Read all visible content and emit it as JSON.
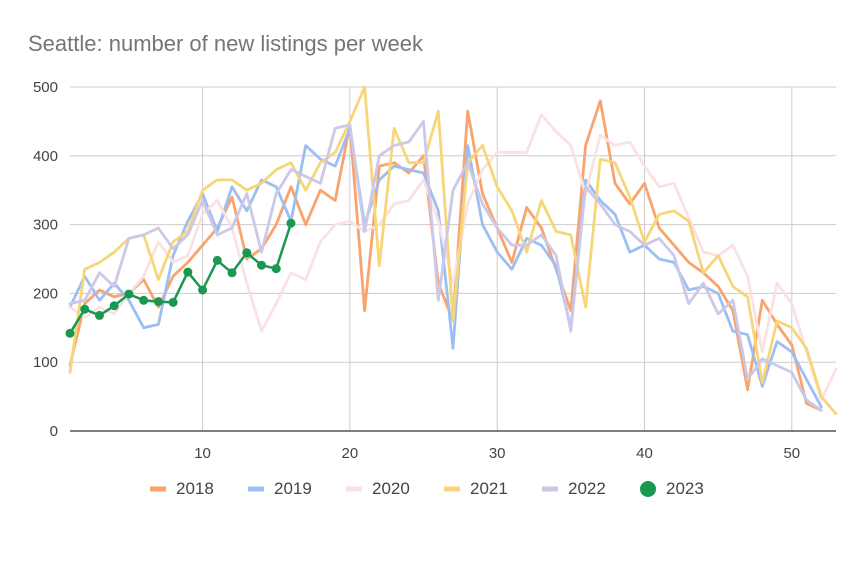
{
  "chart_data": {
    "type": "line",
    "title": "Seattle: number of new listings per week",
    "xlabel": "",
    "ylabel": "",
    "xlim": [
      1,
      53
    ],
    "ylim": [
      0,
      500
    ],
    "x_ticks": [
      10,
      20,
      30,
      40,
      50
    ],
    "y_ticks": [
      0,
      100,
      200,
      300,
      400,
      500
    ],
    "grid": true,
    "legend_position": "bottom",
    "x": [
      1,
      2,
      3,
      4,
      5,
      6,
      7,
      8,
      9,
      10,
      11,
      12,
      13,
      14,
      15,
      16,
      17,
      18,
      19,
      20,
      21,
      22,
      23,
      24,
      25,
      26,
      27,
      28,
      29,
      30,
      31,
      32,
      33,
      34,
      35,
      36,
      37,
      38,
      39,
      40,
      41,
      42,
      43,
      44,
      45,
      46,
      47,
      48,
      49,
      50,
      51,
      52,
      53
    ],
    "series": [
      {
        "name": "2018",
        "color": "#f9a46e",
        "values": [
          95,
          185,
          205,
          195,
          200,
          220,
          180,
          225,
          245,
          270,
          295,
          340,
          250,
          265,
          300,
          355,
          300,
          350,
          335,
          445,
          175,
          385,
          390,
          375,
          400,
          215,
          160,
          465,
          345,
          295,
          245,
          325,
          295,
          235,
          175,
          415,
          480,
          360,
          330,
          360,
          295,
          270,
          245,
          230,
          210,
          175,
          60,
          190,
          155,
          125,
          40,
          30,
          null
        ]
      },
      {
        "name": "2019",
        "color": "#9cbff2",
        "values": [
          180,
          225,
          190,
          215,
          190,
          150,
          155,
          255,
          305,
          345,
          290,
          355,
          320,
          365,
          355,
          305,
          415,
          395,
          385,
          440,
          300,
          365,
          385,
          380,
          375,
          320,
          120,
          415,
          300,
          260,
          235,
          280,
          270,
          240,
          150,
          365,
          335,
          315,
          260,
          270,
          250,
          245,
          205,
          210,
          200,
          145,
          140,
          65,
          130,
          115,
          75,
          35,
          null
        ]
      },
      {
        "name": "2020",
        "color": "#fbe2e2",
        "values": [
          180,
          165,
          180,
          170,
          200,
          225,
          275,
          245,
          255,
          315,
          335,
          295,
          215,
          145,
          185,
          230,
          220,
          275,
          300,
          305,
          290,
          300,
          330,
          335,
          365,
          305,
          215,
          330,
          380,
          405,
          405,
          405,
          460,
          435,
          415,
          345,
          430,
          415,
          420,
          385,
          355,
          360,
          310,
          260,
          255,
          270,
          225,
          115,
          215,
          185,
          115,
          45,
          90
        ]
      },
      {
        "name": "2021",
        "color": "#f7d67a",
        "values": [
          85,
          235,
          245,
          260,
          280,
          285,
          220,
          275,
          290,
          350,
          365,
          365,
          350,
          360,
          380,
          390,
          350,
          390,
          405,
          450,
          500,
          240,
          440,
          390,
          390,
          465,
          160,
          390,
          415,
          355,
          320,
          260,
          335,
          290,
          285,
          180,
          395,
          390,
          340,
          275,
          315,
          320,
          305,
          230,
          255,
          210,
          195,
          70,
          160,
          150,
          120,
          50,
          25
        ]
      },
      {
        "name": "2022",
        "color": "#cdc8e8",
        "values": [
          185,
          190,
          230,
          210,
          280,
          285,
          295,
          265,
          285,
          335,
          285,
          295,
          345,
          260,
          345,
          380,
          370,
          360,
          440,
          445,
          290,
          400,
          415,
          420,
          450,
          190,
          350,
          390,
          330,
          295,
          270,
          270,
          285,
          255,
          145,
          355,
          330,
          300,
          290,
          270,
          280,
          255,
          185,
          215,
          170,
          190,
          75,
          105,
          95,
          85,
          45,
          30,
          null
        ]
      },
      {
        "name": "2023",
        "color": "#1a9850",
        "values": [
          142,
          177,
          168,
          182,
          199,
          190,
          188,
          187,
          231,
          205,
          248,
          230,
          259,
          241,
          236,
          302,
          null,
          null,
          null,
          null,
          null,
          null,
          null,
          null,
          null,
          null,
          null,
          null,
          null,
          null,
          null,
          null,
          null,
          null,
          null,
          null,
          null,
          null,
          null,
          null,
          null,
          null,
          null,
          null,
          null,
          null,
          null,
          null,
          null,
          null,
          null,
          null,
          null
        ]
      }
    ]
  }
}
